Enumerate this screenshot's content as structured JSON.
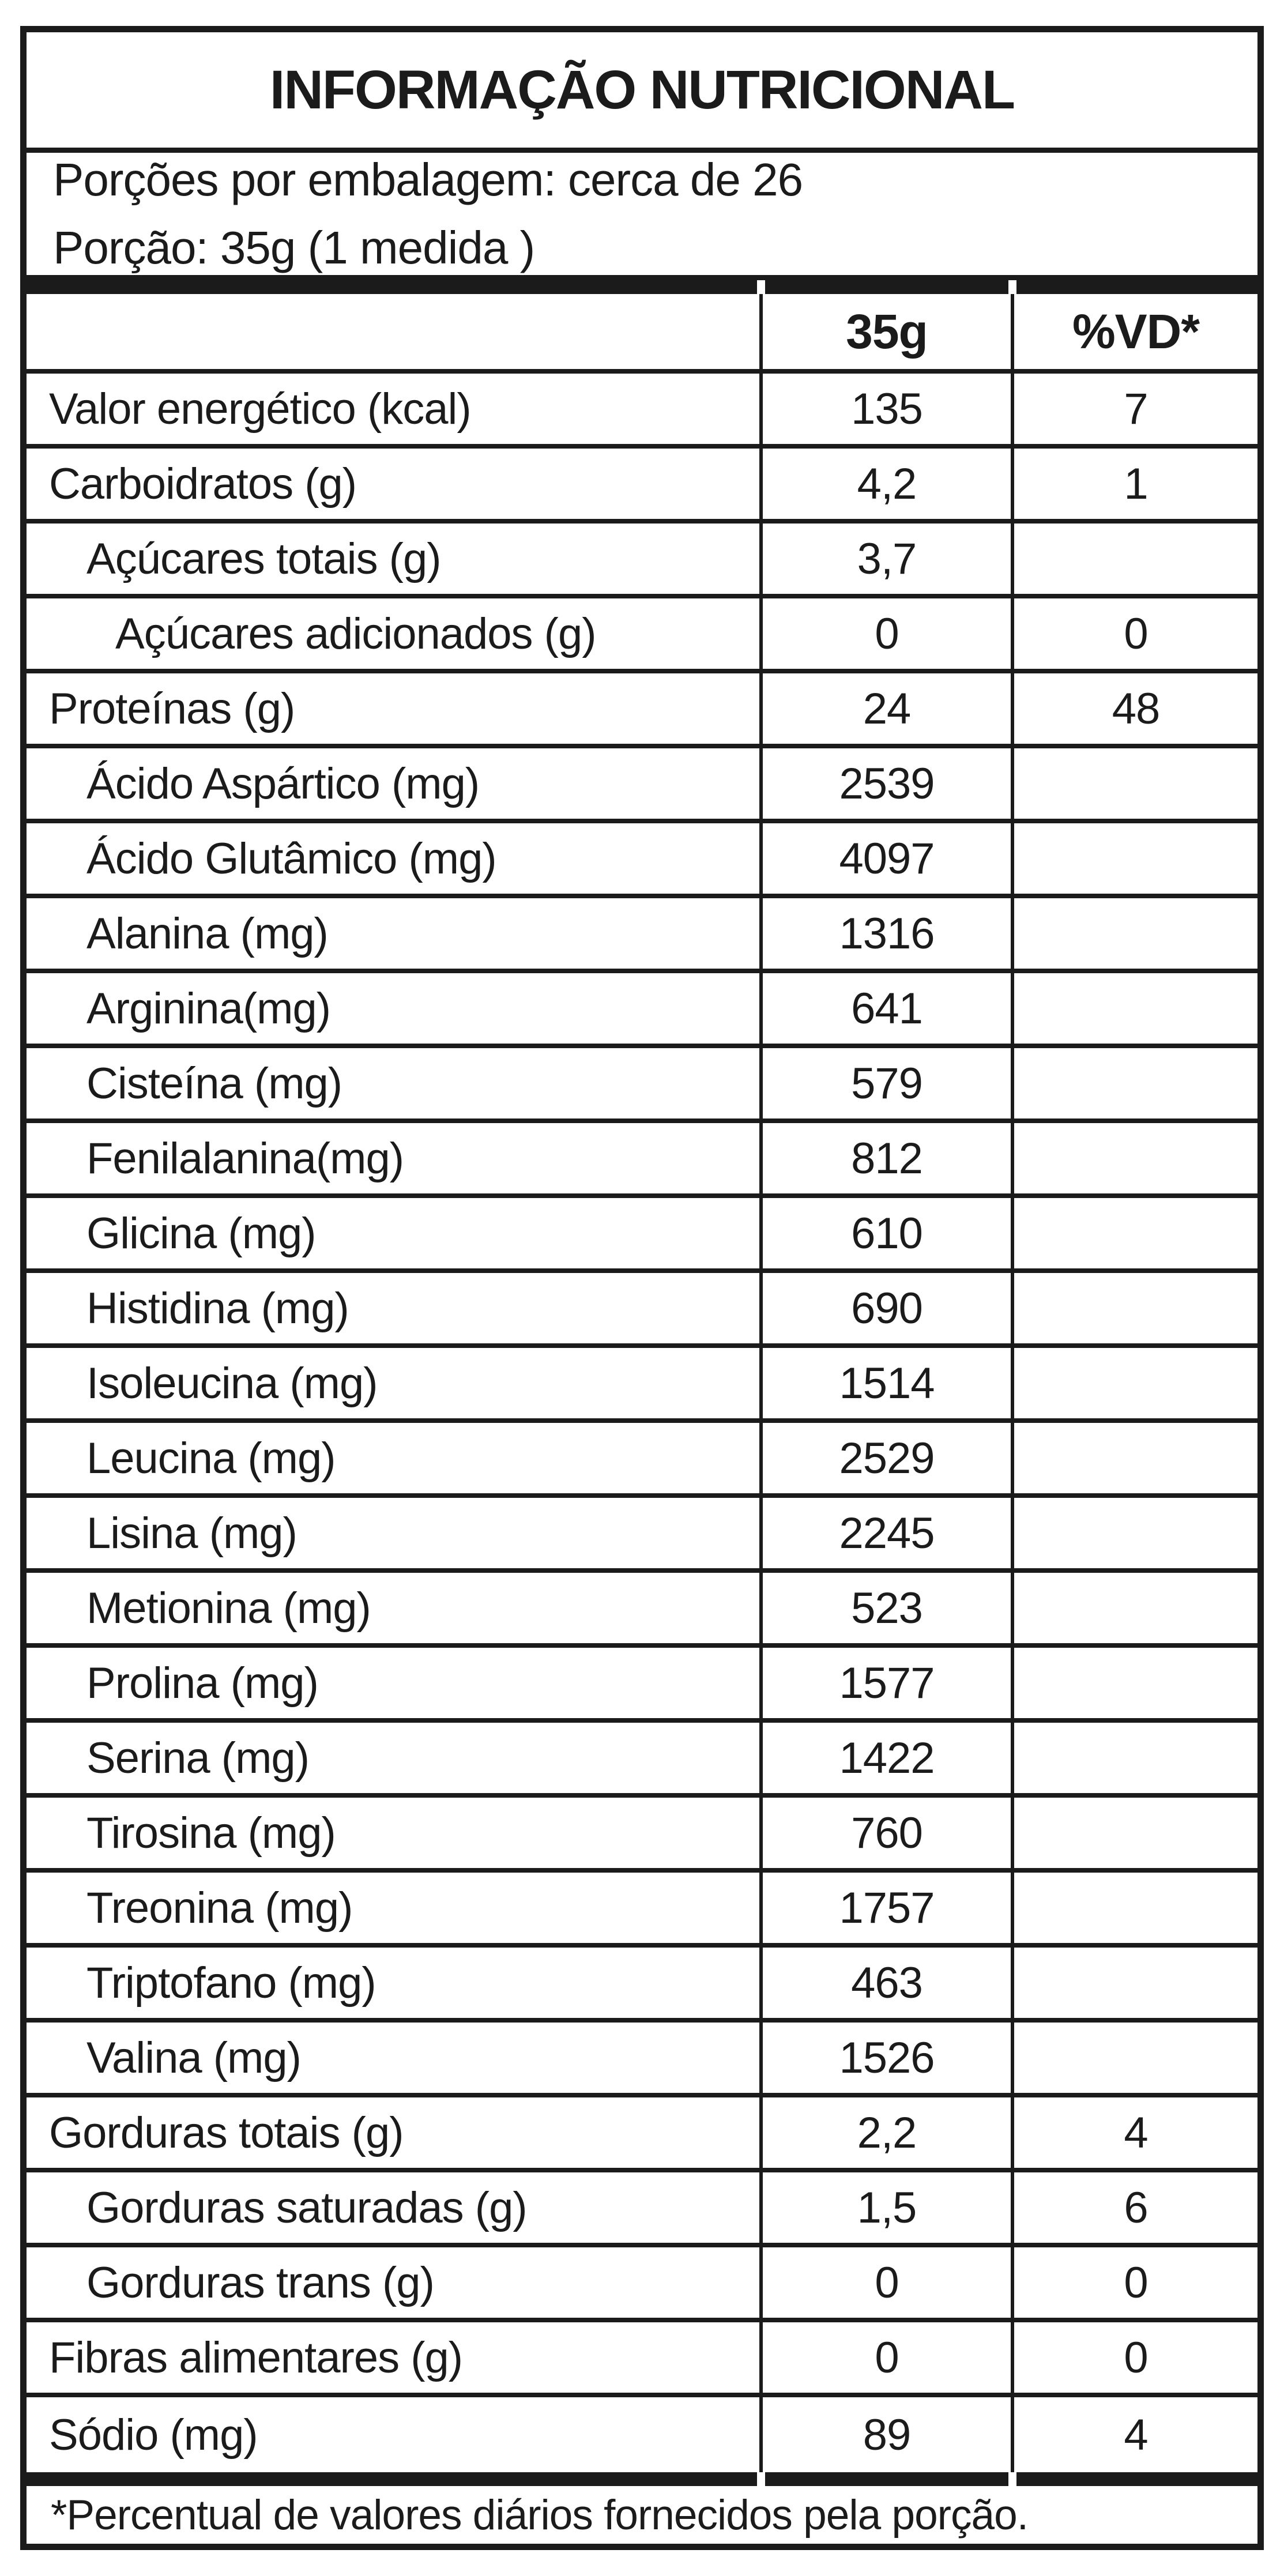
{
  "title": "INFORMAÇÃO NUTRICIONAL",
  "servings": {
    "per_package": "Porções por embalagem: cerca de 26",
    "serving_size": "Porção: 35g (1 medida )"
  },
  "columns": {
    "amount_header": "35g",
    "dv_header": "%VD*"
  },
  "rows": [
    {
      "label": "Valor energético (kcal)",
      "amount": "135",
      "dv": "7",
      "indent": 0
    },
    {
      "label": "Carboidratos (g)",
      "amount": "4,2",
      "dv": "1",
      "indent": 0
    },
    {
      "label": "Açúcares totais (g)",
      "amount": "3,7",
      "dv": "",
      "indent": 1
    },
    {
      "label": "Açúcares adicionados (g)",
      "amount": "0",
      "dv": "0",
      "indent": 2
    },
    {
      "label": "Proteínas (g)",
      "amount": "24",
      "dv": "48",
      "indent": 0
    },
    {
      "label": "Ácido Aspártico (mg)",
      "amount": "2539",
      "dv": "",
      "indent": 1
    },
    {
      "label": "Ácido Glutâmico (mg)",
      "amount": "4097",
      "dv": "",
      "indent": 1
    },
    {
      "label": "Alanina (mg)",
      "amount": "1316",
      "dv": "",
      "indent": 1
    },
    {
      "label": "Arginina(mg)",
      "amount": "641",
      "dv": "",
      "indent": 1
    },
    {
      "label": "Cisteína (mg)",
      "amount": "579",
      "dv": "",
      "indent": 1
    },
    {
      "label": "Fenilalanina(mg)",
      "amount": "812",
      "dv": "",
      "indent": 1
    },
    {
      "label": "Glicina (mg)",
      "amount": "610",
      "dv": "",
      "indent": 1
    },
    {
      "label": "Histidina (mg)",
      "amount": "690",
      "dv": "",
      "indent": 1
    },
    {
      "label": "Isoleucina (mg)",
      "amount": "1514",
      "dv": "",
      "indent": 1
    },
    {
      "label": "Leucina (mg)",
      "amount": "2529",
      "dv": "",
      "indent": 1
    },
    {
      "label": "Lisina (mg)",
      "amount": "2245",
      "dv": "",
      "indent": 1
    },
    {
      "label": "Metionina (mg)",
      "amount": "523",
      "dv": "",
      "indent": 1
    },
    {
      "label": "Prolina (mg)",
      "amount": "1577",
      "dv": "",
      "indent": 1
    },
    {
      "label": "Serina (mg)",
      "amount": "1422",
      "dv": "",
      "indent": 1
    },
    {
      "label": "Tirosina (mg)",
      "amount": "760",
      "dv": "",
      "indent": 1
    },
    {
      "label": "Treonina (mg)",
      "amount": "1757",
      "dv": "",
      "indent": 1
    },
    {
      "label": "Triptofano (mg)",
      "amount": "463",
      "dv": "",
      "indent": 1
    },
    {
      "label": "Valina (mg)",
      "amount": "1526",
      "dv": "",
      "indent": 1
    },
    {
      "label": "Gorduras totais (g)",
      "amount": "2,2",
      "dv": "4",
      "indent": 0
    },
    {
      "label": "Gorduras saturadas (g)",
      "amount": "1,5",
      "dv": "6",
      "indent": 1
    },
    {
      "label": "Gorduras trans (g)",
      "amount": "0",
      "dv": "0",
      "indent": 1
    },
    {
      "label": "Fibras alimentares (g)",
      "amount": "0",
      "dv": "0",
      "indent": 0
    },
    {
      "label": "Sódio (mg)",
      "amount": "89",
      "dv": "4",
      "indent": 0
    }
  ],
  "footnote": "*Percentual de valores diários fornecidos pela porção.",
  "colors": {
    "ink": "#1b1b1b",
    "background": "#ffffff"
  }
}
